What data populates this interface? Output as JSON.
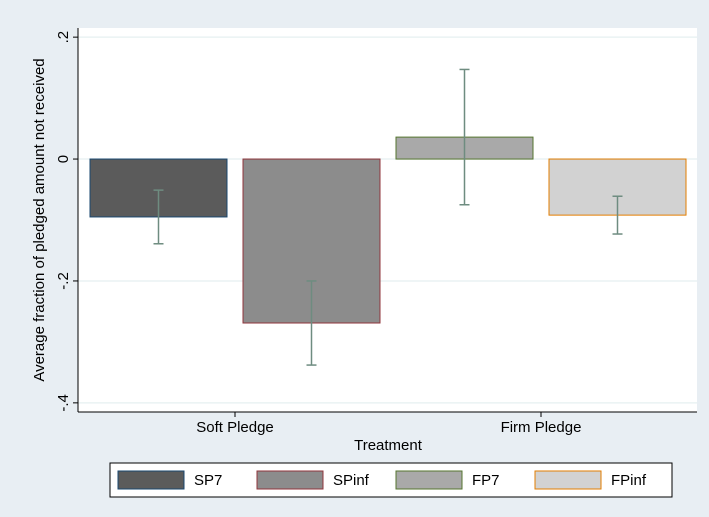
{
  "chart_data": {
    "type": "bar",
    "x_label": "Treatment",
    "y_label": "Average fraction of pledged amount not received",
    "categories": [
      "Soft Pledge",
      "Firm Pledge"
    ],
    "series": [
      {
        "name": "SP7",
        "color": "#5b5b5b",
        "edge": "#1a476f",
        "values": [
          -0.095,
          null
        ],
        "errors": [
          0.044,
          null
        ]
      },
      {
        "name": "SPinf",
        "color": "#8c8c8c",
        "edge": "#90353b",
        "values": [
          -0.269,
          null
        ],
        "errors": [
          0.069,
          null
        ]
      },
      {
        "name": "FP7",
        "color": "#a9a9a9",
        "edge": "#55752f",
        "values": [
          null,
          0.036
        ],
        "errors": [
          null,
          0.111
        ]
      },
      {
        "name": "FPinf",
        "color": "#d2d2d2",
        "edge": "#e37e00",
        "values": [
          null,
          -0.092
        ],
        "errors": [
          null,
          0.031
        ]
      }
    ],
    "error_color": "#6e8c80",
    "ylim": [
      -0.415,
      0.215
    ],
    "yticks": [
      {
        "value": -0.4,
        "label": "-.4"
      },
      {
        "value": -0.2,
        "label": "-.2"
      },
      0,
      {
        "value": 0.2,
        "label": ".2"
      }
    ],
    "grid": true
  }
}
